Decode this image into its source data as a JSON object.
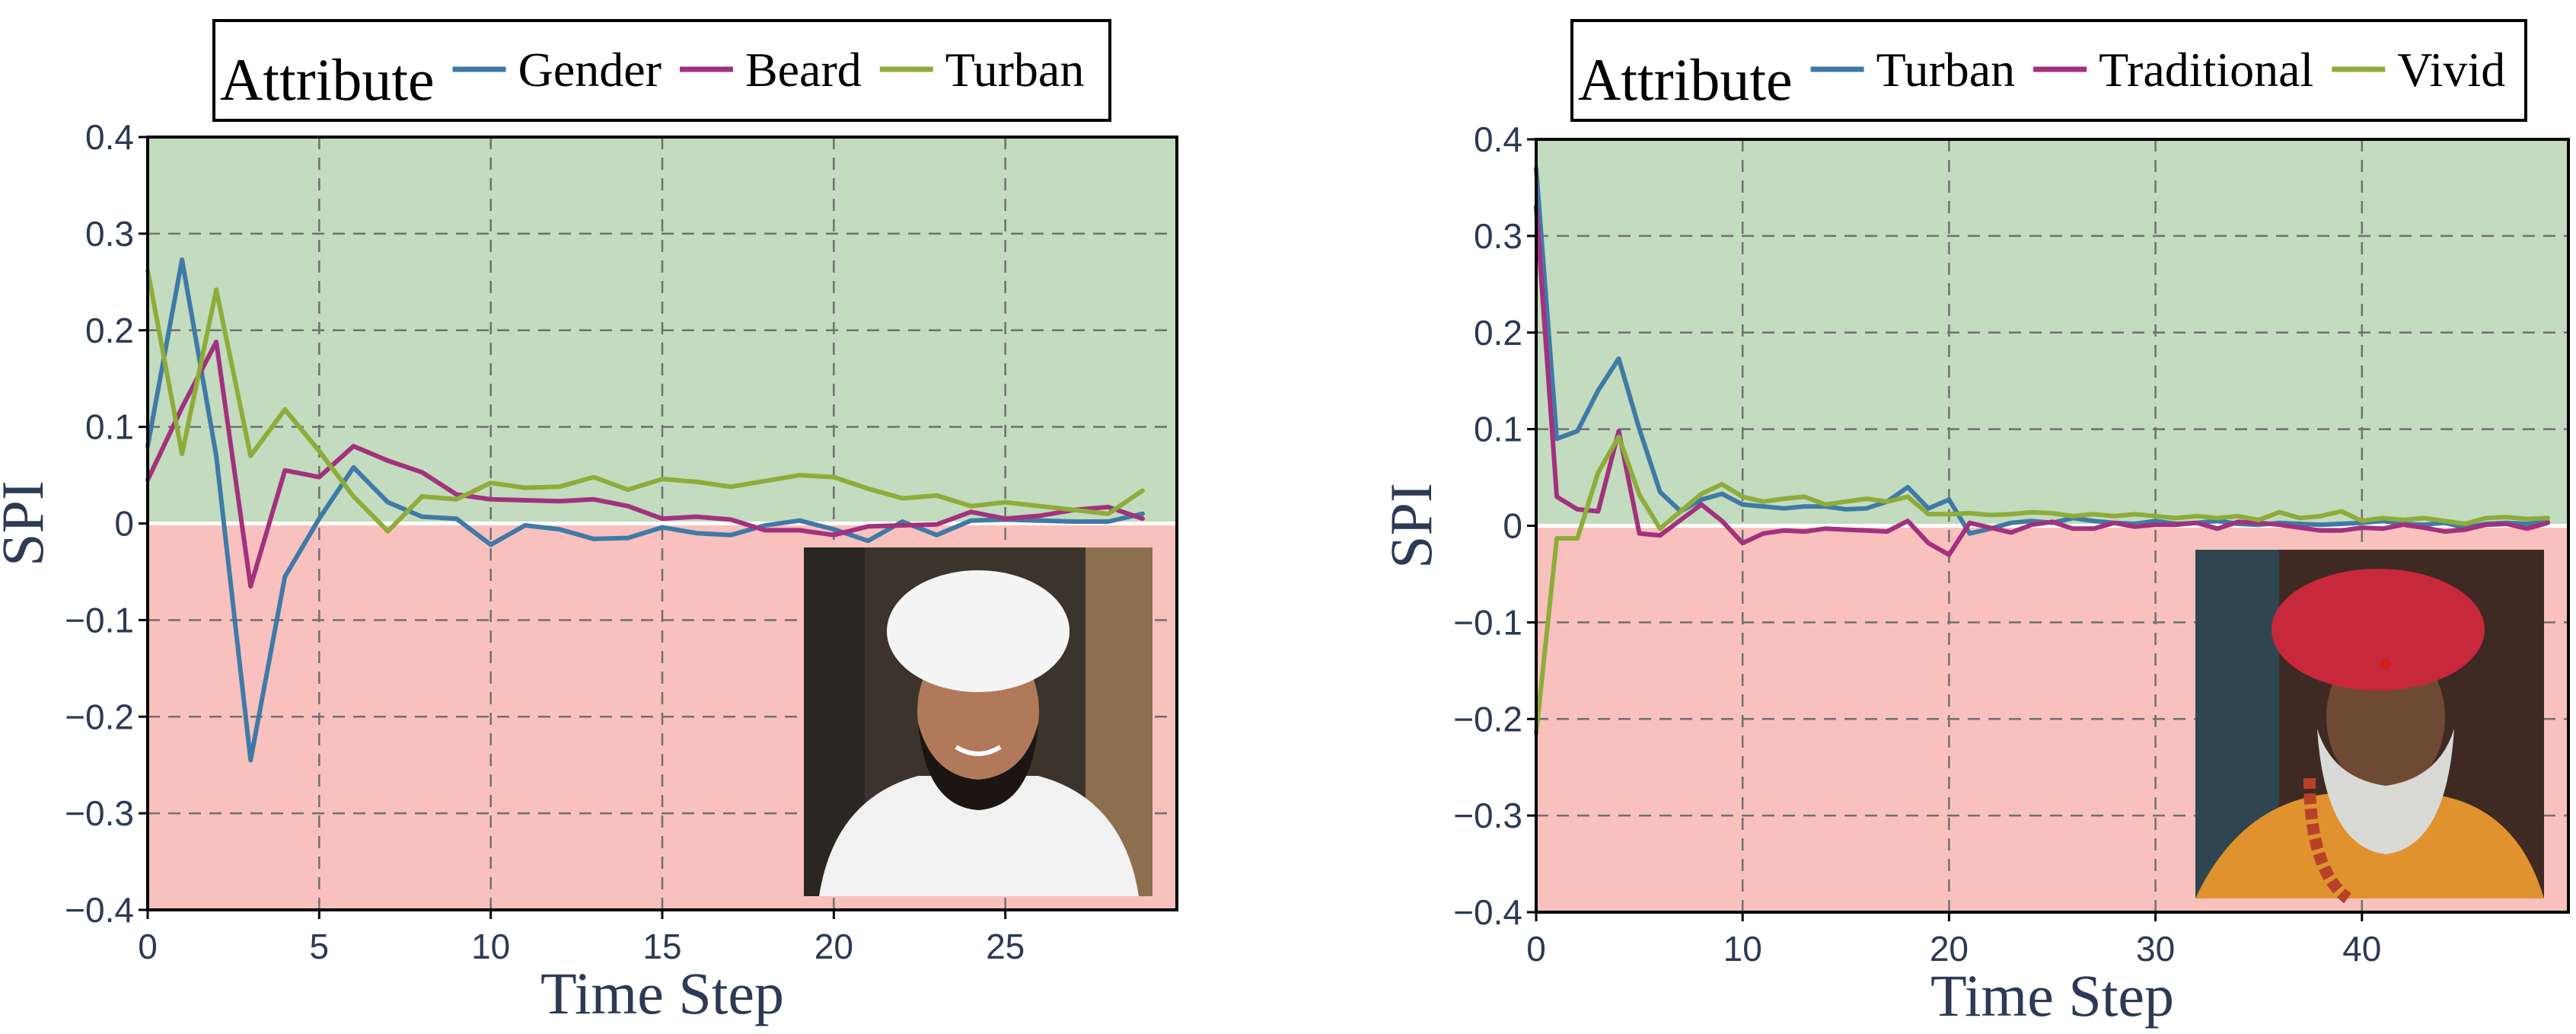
{
  "colors": {
    "positive_region": "#c3dbbe",
    "negative_region": "#f8c1bd",
    "blue": "#3f7aa6",
    "magenta": "#a2317e",
    "green": "#8eac3a",
    "grid": "#707070"
  },
  "chart_data": [
    {
      "type": "line",
      "xlabel": "Time Step",
      "ylabel": "SPI",
      "xlim": [
        0,
        30
      ],
      "ylim": [
        -0.4,
        0.4
      ],
      "xticks": [
        0,
        5,
        10,
        15,
        20,
        25
      ],
      "yticks": [
        -0.4,
        -0.3,
        -0.2,
        -0.1,
        0,
        0.1,
        0.2,
        0.3,
        0.4
      ],
      "grid": true,
      "legend": {
        "title": "Attribute",
        "placement": "top-center",
        "entries": [
          "Gender",
          "Beard",
          "Turban"
        ]
      },
      "inset_image": {
        "subject": "smiling man with white turban, black beard and white robe",
        "placement": "bottom-right"
      },
      "x": [
        0,
        1,
        2,
        3,
        4,
        5,
        6,
        7,
        8,
        9,
        10,
        11,
        12,
        13,
        14,
        15,
        16,
        17,
        18,
        19,
        20,
        21,
        22,
        23,
        24,
        25,
        26,
        27,
        28,
        29
      ],
      "series": [
        {
          "name": "Gender",
          "color": "#3f7aa6",
          "values": [
            0.08,
            0.273,
            0.07,
            -0.245,
            -0.055,
            0.005,
            0.058,
            0.022,
            0.007,
            0.005,
            -0.022,
            -0.002,
            -0.006,
            -0.016,
            -0.015,
            -0.004,
            -0.01,
            -0.012,
            -0.002,
            0.003,
            -0.006,
            -0.018,
            0.002,
            -0.012,
            0.003,
            0.004,
            0.003,
            0.002,
            0.002,
            0.01
          ]
        },
        {
          "name": "Beard",
          "color": "#a2317e",
          "values": [
            0.045,
            0.12,
            0.188,
            -0.065,
            0.055,
            0.048,
            0.08,
            0.065,
            0.053,
            0.03,
            0.025,
            0.024,
            0.023,
            0.025,
            0.018,
            0.005,
            0.007,
            0.004,
            -0.007,
            -0.007,
            -0.012,
            -0.003,
            -0.002,
            -0.001,
            0.012,
            0.005,
            0.008,
            0.014,
            0.017,
            0.005
          ]
        },
        {
          "name": "Turban",
          "color": "#8eac3a",
          "values": [
            0.262,
            0.072,
            0.242,
            0.07,
            0.118,
            0.075,
            0.028,
            -0.008,
            0.028,
            0.025,
            0.042,
            0.037,
            0.038,
            0.048,
            0.035,
            0.046,
            0.043,
            0.038,
            0.044,
            0.05,
            0.048,
            0.036,
            0.026,
            0.029,
            0.018,
            0.022,
            0.018,
            0.014,
            0.01,
            0.034
          ]
        }
      ]
    },
    {
      "type": "line",
      "xlabel": "Time Step",
      "ylabel": "SPI",
      "xlim": [
        0,
        50
      ],
      "ylim": [
        -0.4,
        0.4
      ],
      "xticks": [
        0,
        10,
        20,
        30,
        40
      ],
      "yticks": [
        -0.4,
        -0.3,
        -0.2,
        -0.1,
        0,
        0.1,
        0.2,
        0.3,
        0.4
      ],
      "grid": true,
      "legend": {
        "title": "Attribute",
        "placement": "top-center",
        "entries": [
          "Turban",
          "Traditional",
          "Vivid"
        ]
      },
      "inset_image": {
        "subject": "elderly man with red turban, white beard, beaded necklaces and orange garment",
        "placement": "bottom-right"
      },
      "x": [
        0,
        1,
        2,
        3,
        4,
        5,
        6,
        7,
        8,
        9,
        10,
        11,
        12,
        13,
        14,
        15,
        16,
        17,
        18,
        19,
        20,
        21,
        22,
        23,
        24,
        25,
        26,
        27,
        28,
        29,
        30,
        31,
        32,
        33,
        34,
        35,
        36,
        37,
        38,
        39,
        40,
        41,
        42,
        43,
        44,
        45,
        46,
        47,
        48,
        49
      ],
      "series": [
        {
          "name": "Turban",
          "color": "#3f7aa6",
          "values": [
            0.37,
            0.09,
            0.098,
            0.14,
            0.173,
            0.1,
            0.035,
            0.015,
            0.027,
            0.033,
            0.022,
            0.02,
            0.018,
            0.02,
            0.02,
            0.017,
            0.018,
            0.025,
            0.04,
            0.018,
            0.027,
            -0.008,
            -0.003,
            0.003,
            0.005,
            0.003,
            0.008,
            0.005,
            0.003,
            0.002,
            0.005,
            0.002,
            0.003,
            0.005,
            0.002,
            0.001,
            0.003,
            0.002,
            0.001,
            0.002,
            0.003,
            0.005,
            0.002,
            0.001,
            0.003,
            -0.002,
            0.002,
            0.003,
            0.002,
            0.004
          ]
        },
        {
          "name": "Traditional",
          "color": "#a2317e",
          "values": [
            0.33,
            0.03,
            0.017,
            0.015,
            0.098,
            -0.008,
            -0.01,
            0.006,
            0.022,
            0.005,
            -0.018,
            -0.008,
            -0.005,
            -0.006,
            -0.003,
            -0.004,
            -0.005,
            -0.006,
            0.005,
            -0.018,
            -0.03,
            0.003,
            -0.002,
            -0.007,
            0.001,
            0.004,
            -0.003,
            -0.003,
            0.003,
            -0.001,
            0.001,
            0.001,
            0.003,
            -0.003,
            0.004,
            0.003,
            0.001,
            -0.002,
            -0.005,
            -0.005,
            -0.002,
            -0.003,
            0.001,
            -0.002,
            -0.006,
            -0.004,
            0.001,
            0.002,
            -0.003,
            0.003
          ]
        },
        {
          "name": "Vivid",
          "color": "#8eac3a",
          "values": [
            -0.215,
            -0.013,
            -0.013,
            0.055,
            0.092,
            0.032,
            -0.003,
            0.015,
            0.033,
            0.043,
            0.03,
            0.025,
            0.028,
            0.03,
            0.022,
            0.025,
            0.028,
            0.025,
            0.03,
            0.012,
            0.012,
            0.013,
            0.011,
            0.012,
            0.014,
            0.013,
            0.01,
            0.012,
            0.01,
            0.012,
            0.01,
            0.008,
            0.01,
            0.008,
            0.01,
            0.006,
            0.014,
            0.008,
            0.01,
            0.015,
            0.005,
            0.008,
            0.006,
            0.008,
            0.005,
            0.002,
            0.008,
            0.009,
            0.007,
            0.008
          ]
        }
      ]
    }
  ]
}
